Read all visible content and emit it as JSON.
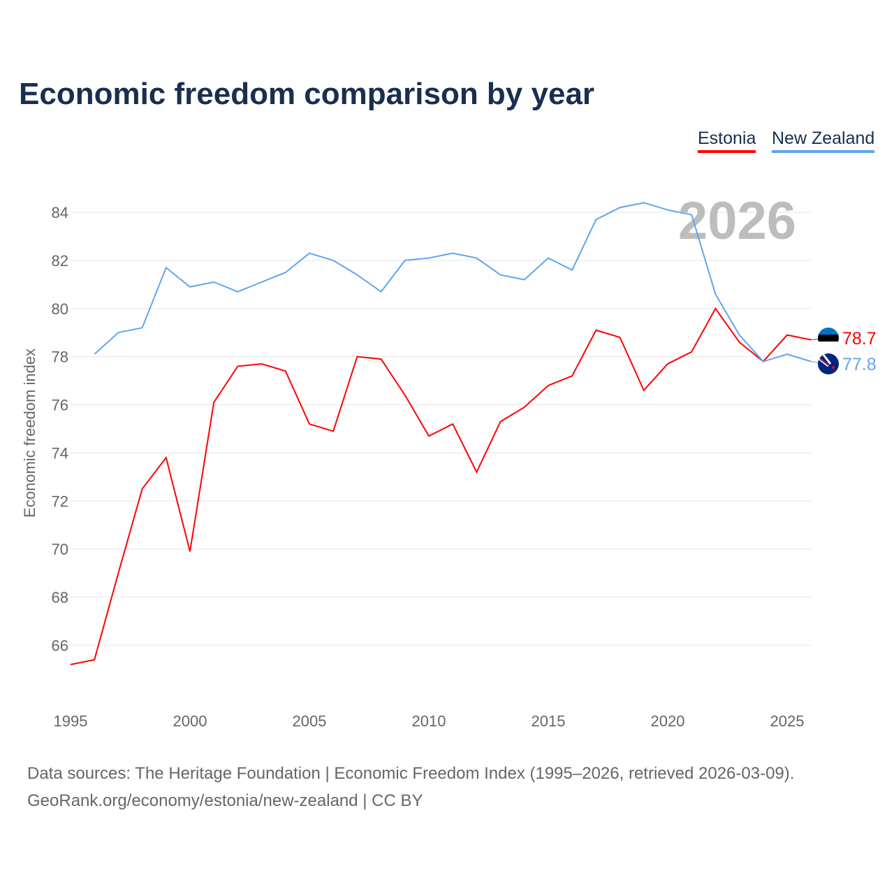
{
  "chart_data": {
    "type": "line",
    "title": "Economic freedom comparison by year",
    "xlabel": "",
    "ylabel": "Economic freedom index",
    "xlim": [
      1995,
      2026
    ],
    "ylim": [
      64,
      85.5
    ],
    "yticks": [
      66,
      68,
      70,
      72,
      74,
      76,
      78,
      80,
      82,
      84
    ],
    "xticks": [
      1995,
      2000,
      2005,
      2010,
      2015,
      2020,
      2025
    ],
    "grid": true,
    "legend_placement": "top-right",
    "year_watermark": "2026",
    "series": [
      {
        "name": "Estonia",
        "color": "#ff0000",
        "end_label": "78.7",
        "x": [
          1995,
          1996,
          1997,
          1998,
          1999,
          2000,
          2001,
          2002,
          2003,
          2004,
          2005,
          2006,
          2007,
          2008,
          2009,
          2010,
          2011,
          2012,
          2013,
          2014,
          2015,
          2016,
          2017,
          2018,
          2019,
          2020,
          2021,
          2022,
          2023,
          2024,
          2025,
          2026
        ],
        "values": [
          65.2,
          65.4,
          69.0,
          72.5,
          73.8,
          69.9,
          76.1,
          77.6,
          77.7,
          77.4,
          75.2,
          74.9,
          78.0,
          77.9,
          76.4,
          74.7,
          75.2,
          73.2,
          75.3,
          75.9,
          76.8,
          77.2,
          79.1,
          78.8,
          76.6,
          77.7,
          78.2,
          80.0,
          78.6,
          77.8,
          78.9,
          78.7
        ]
      },
      {
        "name": "New Zealand",
        "color": "#5fa5ec",
        "end_label": "77.8",
        "x": [
          1996,
          1997,
          1998,
          1999,
          2000,
          2001,
          2002,
          2003,
          2004,
          2005,
          2006,
          2007,
          2008,
          2009,
          2010,
          2011,
          2012,
          2013,
          2014,
          2015,
          2016,
          2017,
          2018,
          2019,
          2020,
          2021,
          2022,
          2023,
          2024,
          2025,
          2026
        ],
        "values": [
          78.1,
          79.0,
          79.2,
          81.7,
          80.9,
          81.1,
          80.7,
          81.1,
          81.5,
          82.3,
          82.0,
          81.4,
          80.7,
          82.0,
          82.1,
          82.3,
          82.1,
          81.4,
          81.2,
          82.1,
          81.6,
          83.7,
          84.2,
          84.4,
          84.1,
          83.9,
          80.6,
          78.9,
          77.8,
          78.1,
          77.8
        ]
      }
    ]
  },
  "source": {
    "line1": "Data sources: The Heritage Foundation | Economic Freedom Index (1995–2026, retrieved 2026-03-09).",
    "line2": "GeoRank.org/economy/estonia/new-zealand | CC BY"
  }
}
